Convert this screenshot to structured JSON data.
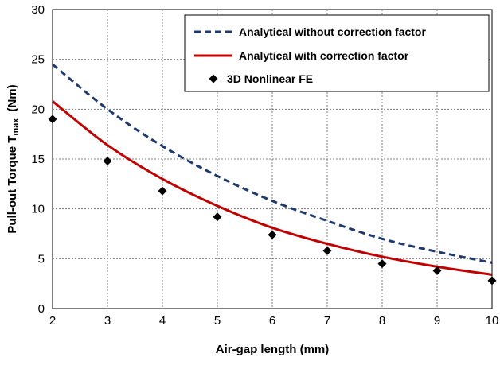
{
  "chart_data": {
    "type": "line",
    "xlabel": "Air-gap length  (mm)",
    "ylabel": "Pull-out Torque  T",
    "ylabel_sub": "max",
    "ylabel_unit": "(Nm)",
    "xlim": [
      2,
      10
    ],
    "ylim": [
      0,
      30
    ],
    "xticks": [
      "2",
      "3",
      "4",
      "5",
      "6",
      "7",
      "8",
      "9",
      "10"
    ],
    "yticks": [
      "0",
      "5",
      "10",
      "15",
      "20",
      "25",
      "30"
    ],
    "grid": true,
    "legend_position": "top-right",
    "x": [
      2,
      3,
      4,
      5,
      6,
      7,
      8,
      9,
      10
    ],
    "series": [
      {
        "name": "Analytical without correction factor",
        "style": "dashed",
        "color": "#1f3a6e",
        "values": [
          24.5,
          20.0,
          16.3,
          13.3,
          10.8,
          8.8,
          7.0,
          5.7,
          4.6
        ]
      },
      {
        "name": "Analytical with correction factor",
        "style": "solid",
        "color": "#c00000",
        "values": [
          20.8,
          16.4,
          13.0,
          10.3,
          8.1,
          6.5,
          5.2,
          4.2,
          3.4
        ]
      },
      {
        "name": "3D  Nonlinear FE",
        "style": "marker",
        "marker": "diamond",
        "color": "#000000",
        "values": [
          19.0,
          14.8,
          11.8,
          9.2,
          7.4,
          5.8,
          4.5,
          3.8,
          2.8
        ]
      }
    ]
  }
}
